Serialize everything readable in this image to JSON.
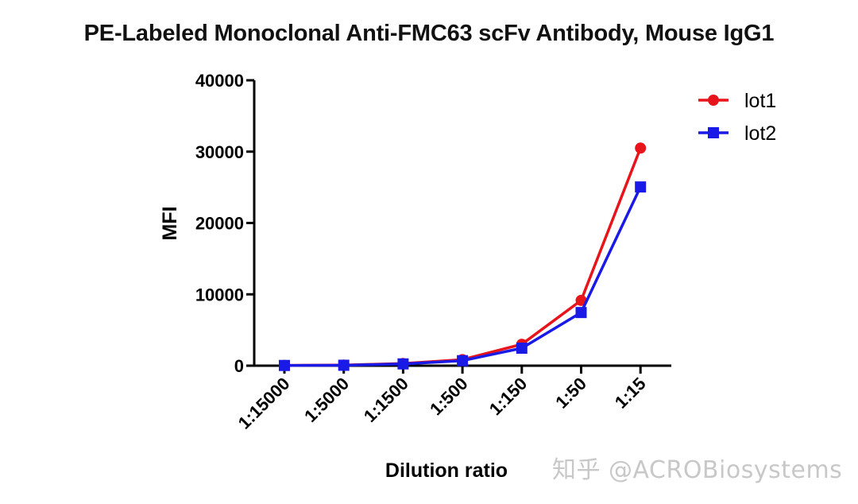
{
  "title": "PE-Labeled Monoclonal Anti-FMC63 scFv Antibody, Mouse IgG1",
  "watermark": "知乎 @ACROBiosystems",
  "colors": {
    "lot1": "#e8141c",
    "lot2": "#1a1ae6",
    "axis": "#000000"
  },
  "chart_data": {
    "type": "line",
    "title": "PE-Labeled Monoclonal Anti-FMC63 scFv Antibody, Mouse IgG1",
    "xlabel": "Dilution ratio",
    "ylabel": "MFI",
    "categories": [
      "1:15000",
      "1:5000",
      "1:1500",
      "1:500",
      "1:150",
      "1:50",
      "1:15"
    ],
    "ylim": [
      0,
      40000
    ],
    "yticks": [
      0,
      10000,
      20000,
      30000,
      40000
    ],
    "grid": false,
    "legend_position": "top-right",
    "series": [
      {
        "name": "lot1",
        "marker": "circle",
        "color": "#e8141c",
        "values": [
          40,
          80,
          300,
          850,
          3000,
          9150,
          30500
        ]
      },
      {
        "name": "lot2",
        "marker": "square",
        "color": "#1a1ae6",
        "values": [
          30,
          60,
          250,
          700,
          2450,
          7450,
          25050
        ]
      }
    ]
  }
}
